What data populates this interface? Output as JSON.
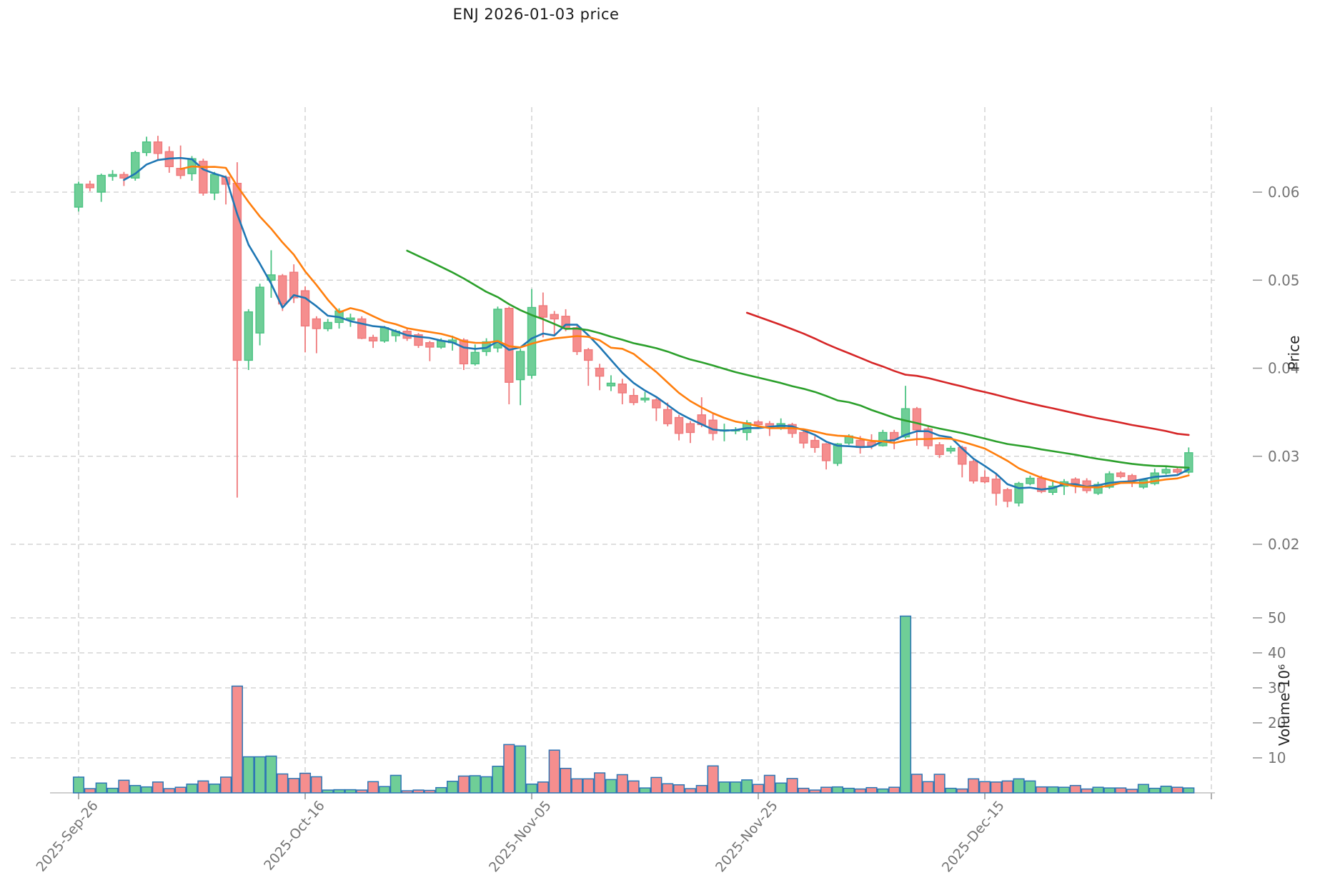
{
  "title": {
    "text": "ENJ  2026-01-03  price"
  },
  "price_axis": {
    "label": "Price",
    "ticks": [
      0.06,
      0.05,
      0.04,
      0.03,
      0.02
    ],
    "ylim": [
      0.0138,
      0.0697
    ]
  },
  "volume_axis": {
    "label": "Volume  10⁶",
    "ticks": [
      10,
      20,
      30,
      40,
      50
    ],
    "ylim": [
      0,
      52.6
    ]
  },
  "x_axis": {
    "tick_labels": [
      "2025-Sep-26",
      "2025-Oct-16",
      "2025-Nov-05",
      "2025-Nov-25",
      "2025-Dec-15"
    ],
    "tick_days": [
      0,
      20,
      40,
      60,
      80
    ],
    "extra_gridline_days": [
      100
    ],
    "start_date": "2025-09-26",
    "end_date": "2026-01-02"
  },
  "colors": {
    "up_fill": "#6fce97",
    "up_edge": "#4cc383",
    "down_fill": "#f58e8e",
    "down_edge": "#ef7a7c",
    "volume_edge": "#2e76b5",
    "sma5": "#1f77b4",
    "sma10": "#ff7f0e",
    "sma30": "#2ca02c",
    "sma60": "#d62728",
    "grid": "#cccccc",
    "tick_text": "#757575",
    "spine": "#bdbdbd"
  },
  "chart_data": {
    "type": "candlestick+volume",
    "symbol": "ENJ",
    "interval": "daily",
    "grid": true,
    "legend_position": "none",
    "xlabel": "",
    "ylabel": "Price",
    "ylabel2": "Volume  10⁶",
    "moving_averages": [
      {
        "name": "SMA5",
        "window": 5,
        "color": "#1f77b4"
      },
      {
        "name": "SMA10",
        "window": 10,
        "color": "#ff7f0e"
      },
      {
        "name": "SMA30",
        "window": 30,
        "color": "#2ca02c"
      },
      {
        "name": "SMA60",
        "window": 60,
        "color": "#d62728"
      }
    ],
    "columns": [
      "open",
      "high",
      "low",
      "close",
      "volume"
    ],
    "candles": [
      [
        0.0583,
        0.0612,
        0.0578,
        0.0609,
        4.5
      ],
      [
        0.0609,
        0.0613,
        0.0601,
        0.0605,
        1.2
      ],
      [
        0.06,
        0.0621,
        0.0589,
        0.0619,
        2.8
      ],
      [
        0.0618,
        0.0625,
        0.0613,
        0.062,
        1.3
      ],
      [
        0.062,
        0.0623,
        0.0607,
        0.0616,
        3.6
      ],
      [
        0.0616,
        0.0647,
        0.0613,
        0.0645,
        2.1
      ],
      [
        0.0645,
        0.0663,
        0.0641,
        0.0657,
        1.7
      ],
      [
        0.0657,
        0.0664,
        0.0637,
        0.0644,
        3.1
      ],
      [
        0.0646,
        0.0652,
        0.0622,
        0.0629,
        1.2
      ],
      [
        0.0627,
        0.0653,
        0.0615,
        0.0619,
        1.6
      ],
      [
        0.0621,
        0.0641,
        0.0613,
        0.0638,
        2.5
      ],
      [
        0.0635,
        0.0638,
        0.0596,
        0.0599,
        3.4
      ],
      [
        0.0599,
        0.0623,
        0.0591,
        0.062,
        2.5
      ],
      [
        0.0617,
        0.0619,
        0.0586,
        0.0609,
        4.5
      ],
      [
        0.061,
        0.0634,
        0.0253,
        0.0409,
        30.5
      ],
      [
        0.0409,
        0.0467,
        0.0398,
        0.0464,
        10.3
      ],
      [
        0.044,
        0.0496,
        0.0426,
        0.0492,
        10.3
      ],
      [
        0.05,
        0.0534,
        0.048,
        0.0506,
        10.5
      ],
      [
        0.0505,
        0.0507,
        0.0465,
        0.0473,
        5.4
      ],
      [
        0.0509,
        0.0518,
        0.0474,
        0.048,
        4.1
      ],
      [
        0.0488,
        0.0493,
        0.0418,
        0.0448,
        5.6
      ],
      [
        0.0456,
        0.0459,
        0.0417,
        0.0445,
        4.6
      ],
      [
        0.0445,
        0.0456,
        0.0442,
        0.0452,
        0.8
      ],
      [
        0.0452,
        0.0468,
        0.0445,
        0.0465,
        0.9
      ],
      [
        0.0455,
        0.0462,
        0.0447,
        0.0457,
        0.9
      ],
      [
        0.0456,
        0.0459,
        0.0433,
        0.0434,
        0.8
      ],
      [
        0.0435,
        0.0438,
        0.0423,
        0.0431,
        3.2
      ],
      [
        0.0431,
        0.0448,
        0.0429,
        0.0446,
        1.8
      ],
      [
        0.0437,
        0.0444,
        0.043,
        0.0442,
        5.0
      ],
      [
        0.0442,
        0.0445,
        0.0431,
        0.0434,
        0.6
      ],
      [
        0.0438,
        0.044,
        0.0423,
        0.0426,
        0.8
      ],
      [
        0.0429,
        0.0431,
        0.0408,
        0.0424,
        0.7
      ],
      [
        0.0424,
        0.0434,
        0.0422,
        0.0431,
        1.5
      ],
      [
        0.0429,
        0.0437,
        0.042,
        0.0432,
        3.3
      ],
      [
        0.0432,
        0.0434,
        0.0398,
        0.0405,
        4.8
      ],
      [
        0.0405,
        0.0427,
        0.0403,
        0.0418,
        4.9
      ],
      [
        0.0419,
        0.0434,
        0.0414,
        0.043,
        4.6
      ],
      [
        0.0423,
        0.047,
        0.0418,
        0.0467,
        7.6
      ],
      [
        0.0468,
        0.047,
        0.0359,
        0.0384,
        13.8
      ],
      [
        0.0387,
        0.0422,
        0.0358,
        0.0419,
        13.4
      ],
      [
        0.0392,
        0.049,
        0.0388,
        0.0469,
        2.5
      ],
      [
        0.0471,
        0.0486,
        0.0435,
        0.0458,
        3.1
      ],
      [
        0.0461,
        0.0465,
        0.0437,
        0.0456,
        12.2
      ],
      [
        0.0459,
        0.0467,
        0.0442,
        0.0445,
        7.0
      ],
      [
        0.0446,
        0.0449,
        0.0415,
        0.0419,
        4.0
      ],
      [
        0.0421,
        0.0423,
        0.038,
        0.0409,
        4.0
      ],
      [
        0.04,
        0.0405,
        0.0375,
        0.0391,
        5.7
      ],
      [
        0.038,
        0.0392,
        0.0374,
        0.0383,
        3.8
      ],
      [
        0.0382,
        0.0388,
        0.0359,
        0.0372,
        5.2
      ],
      [
        0.0369,
        0.0377,
        0.0358,
        0.0361,
        3.4
      ],
      [
        0.0364,
        0.0373,
        0.0361,
        0.0366,
        1.4
      ],
      [
        0.0364,
        0.0366,
        0.034,
        0.0355,
        4.4
      ],
      [
        0.0353,
        0.0361,
        0.0334,
        0.0337,
        2.6
      ],
      [
        0.0344,
        0.0347,
        0.0318,
        0.0326,
        2.3
      ],
      [
        0.0337,
        0.034,
        0.0315,
        0.0327,
        1.2
      ],
      [
        0.0347,
        0.0367,
        0.0333,
        0.0336,
        2.1
      ],
      [
        0.0341,
        0.0348,
        0.0318,
        0.0326,
        7.7
      ],
      [
        0.0329,
        0.0337,
        0.0317,
        0.033,
        3.1
      ],
      [
        0.0329,
        0.0333,
        0.0325,
        0.033,
        3.1
      ],
      [
        0.0327,
        0.0341,
        0.0318,
        0.0338,
        3.7
      ],
      [
        0.0339,
        0.0341,
        0.0333,
        0.0336,
        2.4
      ],
      [
        0.0337,
        0.034,
        0.0323,
        0.0333,
        5.0
      ],
      [
        0.0333,
        0.0343,
        0.033,
        0.0337,
        2.8
      ],
      [
        0.0336,
        0.0338,
        0.0321,
        0.0326,
        4.1
      ],
      [
        0.0327,
        0.033,
        0.0309,
        0.0315,
        1.3
      ],
      [
        0.0318,
        0.0323,
        0.0304,
        0.031,
        0.8
      ],
      [
        0.0314,
        0.0315,
        0.0285,
        0.0295,
        1.6
      ],
      [
        0.0292,
        0.0315,
        0.0289,
        0.0314,
        1.7
      ],
      [
        0.0315,
        0.0325,
        0.0313,
        0.0323,
        1.3
      ],
      [
        0.0318,
        0.0323,
        0.0303,
        0.031,
        1.1
      ],
      [
        0.0316,
        0.0325,
        0.0308,
        0.0312,
        1.5
      ],
      [
        0.0312,
        0.033,
        0.0311,
        0.0327,
        1.1
      ],
      [
        0.0327,
        0.033,
        0.0308,
        0.0319,
        1.6
      ],
      [
        0.0322,
        0.038,
        0.032,
        0.0354,
        50.5
      ],
      [
        0.0354,
        0.0356,
        0.0312,
        0.033,
        5.3
      ],
      [
        0.0331,
        0.0334,
        0.0308,
        0.0312,
        3.2
      ],
      [
        0.0313,
        0.0316,
        0.0298,
        0.0302,
        5.3
      ],
      [
        0.0306,
        0.0312,
        0.0303,
        0.0309,
        1.3
      ],
      [
        0.031,
        0.0312,
        0.0276,
        0.0291,
        1.1
      ],
      [
        0.0294,
        0.0296,
        0.0269,
        0.0272,
        4.0
      ],
      [
        0.0276,
        0.0284,
        0.0269,
        0.0271,
        3.2
      ],
      [
        0.0274,
        0.028,
        0.0244,
        0.0258,
        3.1
      ],
      [
        0.0262,
        0.0264,
        0.0242,
        0.0249,
        3.4
      ],
      [
        0.0247,
        0.0271,
        0.0243,
        0.0269,
        4.0
      ],
      [
        0.0269,
        0.0278,
        0.0267,
        0.0275,
        3.4
      ],
      [
        0.0275,
        0.0278,
        0.0258,
        0.026,
        1.7
      ],
      [
        0.0259,
        0.0273,
        0.0256,
        0.0266,
        1.7
      ],
      [
        0.0266,
        0.0274,
        0.0256,
        0.0271,
        1.6
      ],
      [
        0.0274,
        0.0276,
        0.0258,
        0.0269,
        2.1
      ],
      [
        0.0272,
        0.0275,
        0.0258,
        0.0261,
        1.1
      ],
      [
        0.0258,
        0.0271,
        0.0256,
        0.0268,
        1.6
      ],
      [
        0.0265,
        0.0283,
        0.0263,
        0.028,
        1.4
      ],
      [
        0.0281,
        0.0283,
        0.0275,
        0.0277,
        1.4
      ],
      [
        0.0278,
        0.028,
        0.0265,
        0.0272,
        1.0
      ],
      [
        0.0265,
        0.0275,
        0.0263,
        0.0273,
        2.4
      ],
      [
        0.0269,
        0.0286,
        0.0267,
        0.0281,
        1.3
      ],
      [
        0.0281,
        0.0288,
        0.0279,
        0.0285,
        1.9
      ],
      [
        0.0285,
        0.0288,
        0.028,
        0.0282,
        1.6
      ],
      [
        0.0282,
        0.031,
        0.028,
        0.0304,
        1.4
      ]
    ]
  }
}
